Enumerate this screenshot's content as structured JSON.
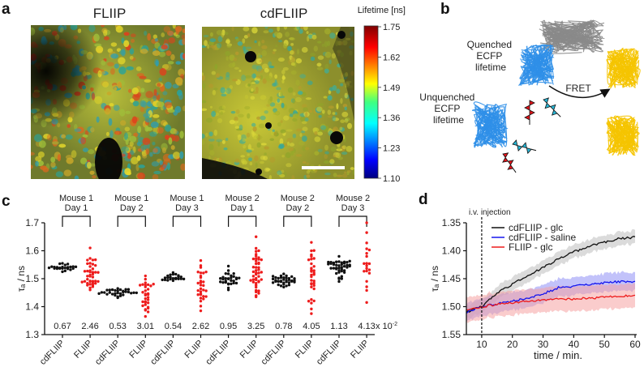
{
  "panels": {
    "a": {
      "label": "a",
      "image_left_title": "FLIIP",
      "image_right_title": "cdFLIIP",
      "colorbar": {
        "title": "Lifetime [ns]",
        "ticks": [
          "1.75",
          "1.62",
          "1.49",
          "1.36",
          "1.23",
          "1.10"
        ],
        "range": [
          1.1,
          1.75
        ]
      }
    },
    "b": {
      "label": "b",
      "quenched_lines": [
        "Quenched",
        "ECFP",
        "lifetime"
      ],
      "unquenched_lines": [
        "Unquenched",
        "ECFP",
        "lifetime"
      ],
      "fret_label": "FRET",
      "colors": {
        "ecfp": "#2f8fe8",
        "eyfp": "#f5c400",
        "sensor": "#8a8a8a",
        "red_wave": "#e3141b",
        "cyan_wave": "#28b8d8"
      }
    },
    "c": {
      "label": "c"
    },
    "d": {
      "label": "d"
    }
  },
  "chart_data": [
    {
      "id": "c",
      "type": "scatter",
      "ylabel": "τₐ / ns",
      "ylim": [
        1.3,
        1.7
      ],
      "yticks": [
        "1.3",
        "1.4",
        "1.5",
        "1.6",
        "1.7"
      ],
      "categories": [
        "cdFLIIP",
        "FLIIP",
        "cdFLIIP",
        "FLIIP",
        "cdFLIIP",
        "FLIIP",
        "cdFLIIP",
        "FLIIP",
        "cdFLIIP",
        "FLIIP",
        "cdFLIIP",
        "FLIIP"
      ],
      "groups": [
        {
          "line1": "Mouse 1",
          "line2": "Day 1"
        },
        {
          "line1": "Mouse 1",
          "line2": "Day 2"
        },
        {
          "line1": "Mouse 1",
          "line2": "Day 3"
        },
        {
          "line1": "Mouse 2",
          "line2": "Day 1"
        },
        {
          "line1": "Mouse 2",
          "line2": "Day 2"
        },
        {
          "line1": "Mouse 2",
          "line2": "Day 3"
        }
      ],
      "annotations": [
        "0.67",
        "2.46",
        "0.53",
        "3.01",
        "0.54",
        "2.62",
        "0.95",
        "3.25",
        "0.78",
        "4.05",
        "1.13",
        "4.13"
      ],
      "annotation_unit": "x 10",
      "annotation_exp": "-2",
      "series_colors": {
        "cdFLIIP": "#111111",
        "FLIIP": "#ee1c1c"
      },
      "distributions": [
        {
          "center": 1.538,
          "min": 1.525,
          "max": 1.555,
          "n": 24
        },
        {
          "center": 1.49,
          "min": 1.46,
          "max": 1.61,
          "n": 40
        },
        {
          "center": 1.448,
          "min": 1.432,
          "max": 1.465,
          "n": 30
        },
        {
          "center": 1.415,
          "min": 1.365,
          "max": 1.51,
          "n": 32
        },
        {
          "center": 1.5,
          "min": 1.493,
          "max": 1.522,
          "n": 22
        },
        {
          "center": 1.46,
          "min": 1.385,
          "max": 1.565,
          "n": 30
        },
        {
          "center": 1.492,
          "min": 1.46,
          "max": 1.545,
          "n": 30
        },
        {
          "center": 1.5,
          "min": 1.435,
          "max": 1.65,
          "n": 44
        },
        {
          "center": 1.49,
          "min": 1.47,
          "max": 1.517,
          "n": 36
        },
        {
          "center": 1.52,
          "min": 1.375,
          "max": 1.63,
          "n": 32
        },
        {
          "center": 1.555,
          "min": 1.49,
          "max": 1.58,
          "n": 40
        },
        {
          "center": 1.57,
          "min": 1.415,
          "max": 1.7,
          "n": 20
        }
      ]
    },
    {
      "id": "d",
      "type": "line",
      "xlabel": "time / min.",
      "ylabel": "τₐ / ns",
      "xlim": [
        5,
        60
      ],
      "ylim": [
        1.55,
        1.35
      ],
      "xticks": [
        "10",
        "20",
        "30",
        "40",
        "50",
        "60"
      ],
      "yticks": [
        "1.35",
        "1.40",
        "1.45",
        "1.50",
        "1.55"
      ],
      "annotation": "i.v. injection",
      "injection_time": 10,
      "x": [
        5,
        10,
        15,
        20,
        25,
        30,
        35,
        40,
        45,
        50,
        55,
        60
      ],
      "series": [
        {
          "name": "cdFLIIP - glc",
          "color": "#111111",
          "band": "#bdbdbd",
          "values": [
            1.51,
            1.5,
            1.475,
            1.46,
            1.445,
            1.43,
            1.415,
            1.402,
            1.392,
            1.385,
            1.378,
            1.376
          ],
          "sd": 0.012
        },
        {
          "name": "cdFLIIP - saline",
          "color": "#1515ee",
          "band": "#8f8ff5",
          "values": [
            1.51,
            1.5,
            1.495,
            1.49,
            1.485,
            1.477,
            1.466,
            1.464,
            1.46,
            1.457,
            1.455,
            1.455
          ],
          "sd": 0.016
        },
        {
          "name": "FLIIP - glc",
          "color": "#ee1c1c",
          "band": "#f5a3a3",
          "values": [
            1.506,
            1.5,
            1.496,
            1.493,
            1.49,
            1.489,
            1.487,
            1.486,
            1.485,
            1.483,
            1.482,
            1.48
          ],
          "sd": 0.022
        }
      ]
    }
  ]
}
